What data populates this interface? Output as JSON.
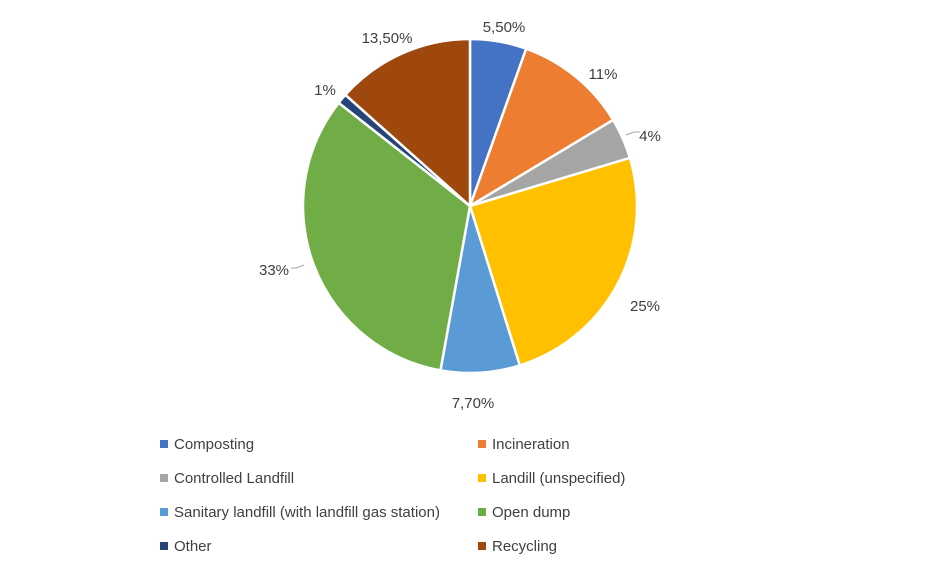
{
  "chart_data": {
    "type": "pie",
    "title": "",
    "legend_position": "bottom",
    "slices": [
      {
        "name": "Composting",
        "value": 5.5,
        "label": "5,50%",
        "color": "#4472C4"
      },
      {
        "name": "Incineration",
        "value": 11,
        "label": "11%",
        "color": "#ED7D31"
      },
      {
        "name": "Controlled Landfill",
        "value": 4,
        "label": "4%",
        "color": "#A5A5A5"
      },
      {
        "name": "Landill (unspecified)",
        "value": 25,
        "label": "25%",
        "color": "#FFC000"
      },
      {
        "name": "Sanitary landfill (with landfill gas station)",
        "value": 7.7,
        "label": "7,70%",
        "color": "#5B9BD5"
      },
      {
        "name": "Open dump",
        "value": 33,
        "label": "33%",
        "color": "#70AD47"
      },
      {
        "name": "Other",
        "value": 1,
        "label": "1%",
        "color": "#264478"
      },
      {
        "name": "Recycling",
        "value": 13.5,
        "label": "13,50%",
        "color": "#9E480E"
      }
    ]
  }
}
